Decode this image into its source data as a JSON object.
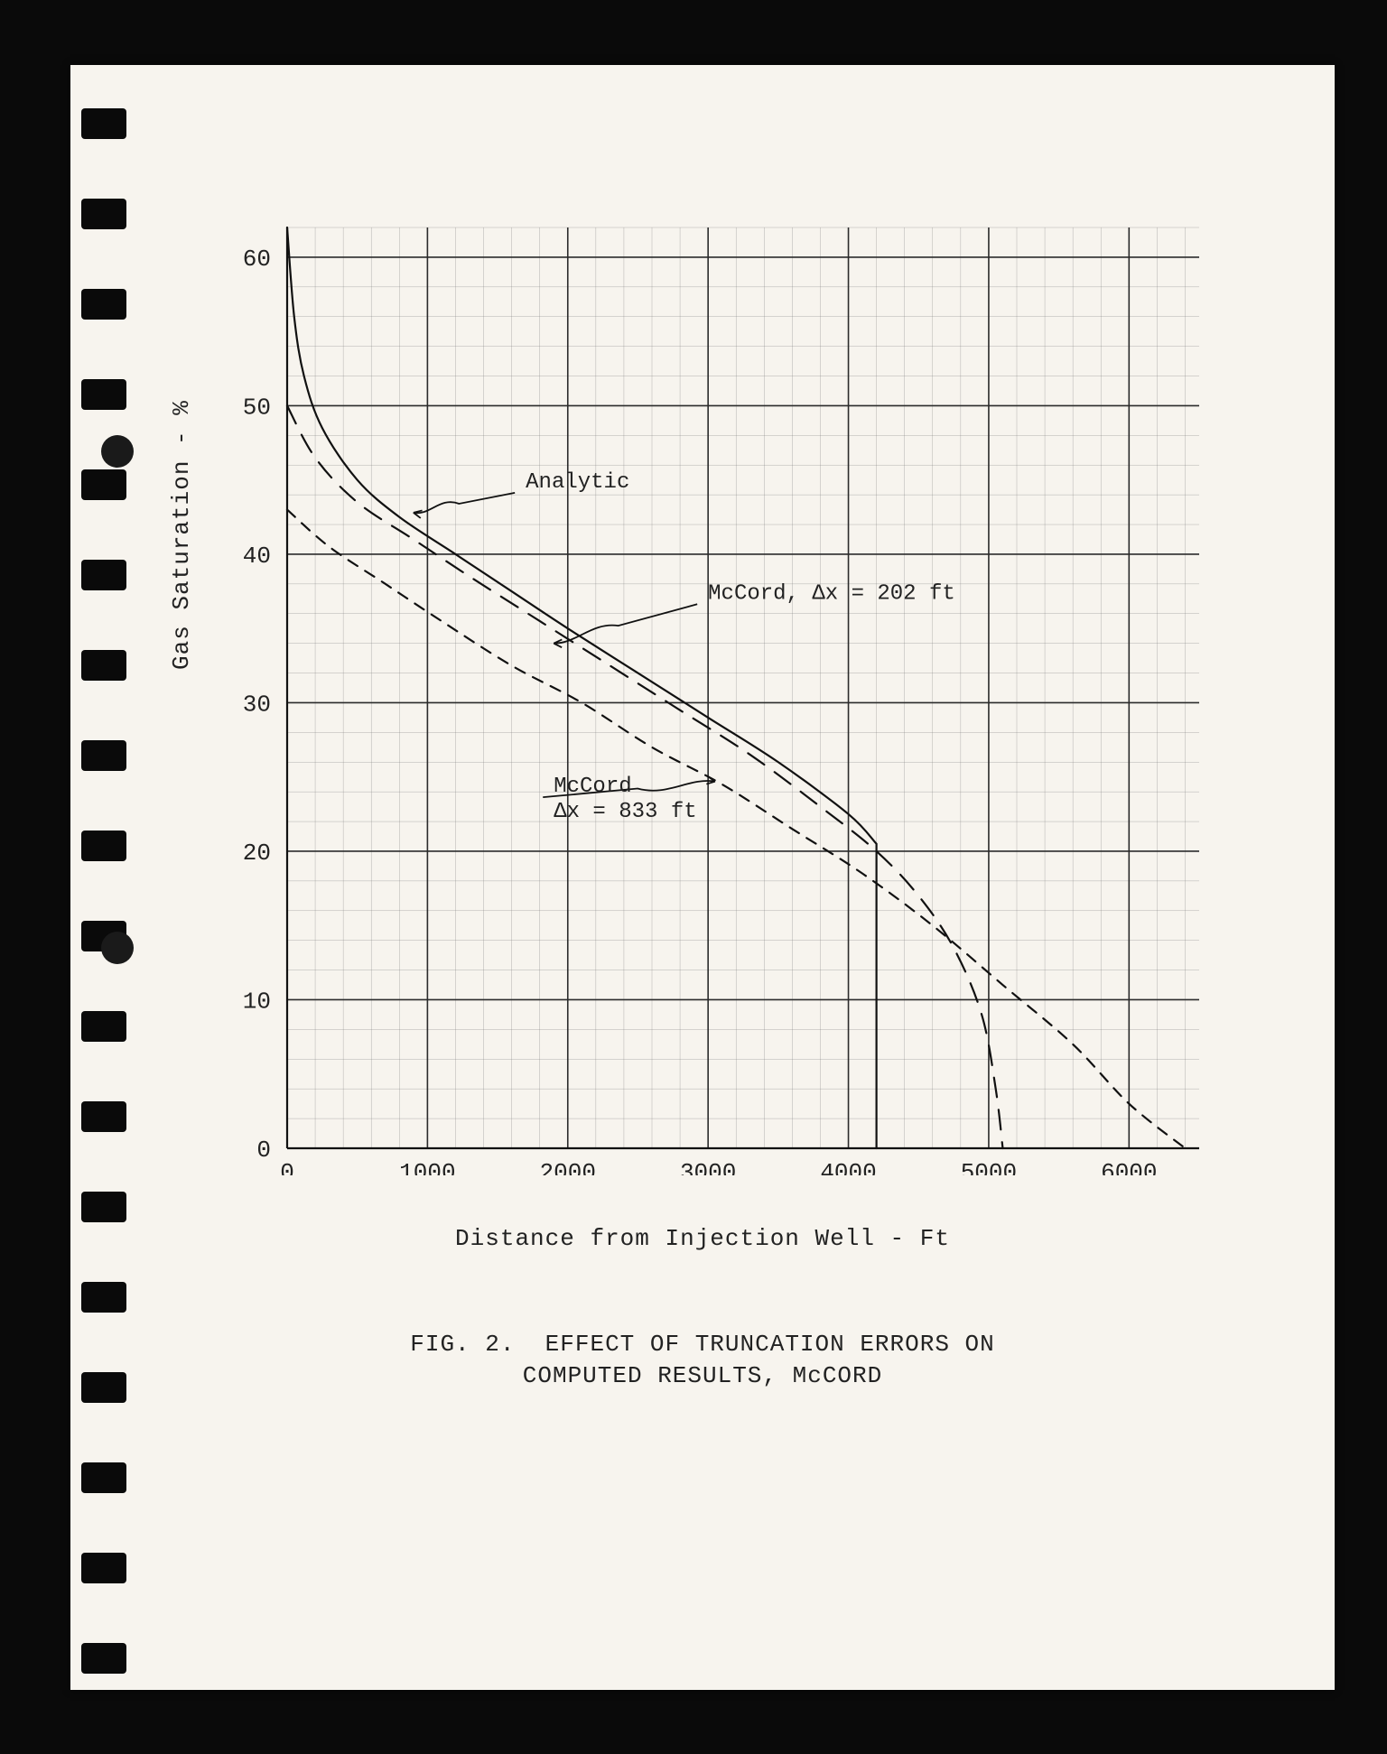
{
  "figure": {
    "caption_line1": "FIG. 2.  EFFECT OF TRUNCATION ERRORS ON",
    "caption_line2": "COMPUTED RESULTS, McCORD",
    "xlabel": "Distance from Injection Well - Ft",
    "ylabel": "Gas Saturation - %",
    "xlim": [
      0,
      6500
    ],
    "ylim": [
      0,
      62
    ],
    "xticks": [
      0,
      1000,
      2000,
      3000,
      4000,
      5000,
      6000
    ],
    "yticks": [
      0,
      10,
      20,
      30,
      40,
      50,
      60
    ],
    "minor_xstep": 200,
    "minor_ystep": 2,
    "major_xstep": 1000,
    "major_ystep": 10,
    "grid_major_color": "#2b2b2b",
    "grid_minor_color": "#7a7a7a",
    "grid_major_width": 1.6,
    "grid_minor_width": 0.5,
    "background": "#f7f4ee",
    "font_family": "Courier New",
    "label_fontsize": 26,
    "tick_fontsize": 26,
    "anno_fontsize": 24,
    "series": {
      "analytic": {
        "label": "Analytic",
        "style": "solid",
        "color": "#111111",
        "width": 2.2,
        "points": [
          [
            0,
            62
          ],
          [
            50,
            56
          ],
          [
            120,
            52
          ],
          [
            250,
            48.5
          ],
          [
            500,
            45
          ],
          [
            800,
            42.5
          ],
          [
            1200,
            40
          ],
          [
            1600,
            37.5
          ],
          [
            2000,
            35
          ],
          [
            2500,
            32
          ],
          [
            3000,
            29
          ],
          [
            3500,
            26
          ],
          [
            4000,
            22.5
          ],
          [
            4200,
            20.5
          ],
          [
            4200,
            0
          ]
        ],
        "anno_xy": [
          1700,
          44.5
        ],
        "arrow_to": [
          900,
          42.8
        ]
      },
      "mccord202": {
        "label": "McCord, Δx = 202 ft",
        "style": "long-dash",
        "dash": "22 14",
        "color": "#111111",
        "width": 2.2,
        "points": [
          [
            0,
            50
          ],
          [
            200,
            46.5
          ],
          [
            500,
            43.5
          ],
          [
            900,
            41
          ],
          [
            1300,
            38.5
          ],
          [
            1800,
            35.5
          ],
          [
            2300,
            32.5
          ],
          [
            2800,
            29.5
          ],
          [
            3300,
            26.5
          ],
          [
            3800,
            23
          ],
          [
            4200,
            20
          ],
          [
            4500,
            17
          ],
          [
            4750,
            13.5
          ],
          [
            4950,
            9
          ],
          [
            5050,
            4
          ],
          [
            5100,
            0
          ]
        ],
        "anno_xy": [
          3000,
          37
        ],
        "arrow_to": [
          1900,
          34
        ]
      },
      "mccord833": {
        "label": "McCord\nΔx = 833 ft",
        "style": "short-dash",
        "dash": "12 10",
        "color": "#111111",
        "width": 2.2,
        "points": [
          [
            0,
            43
          ],
          [
            300,
            40.5
          ],
          [
            700,
            38
          ],
          [
            1100,
            35.5
          ],
          [
            1600,
            32.5
          ],
          [
            2100,
            30
          ],
          [
            2600,
            27
          ],
          [
            3100,
            24.5
          ],
          [
            3600,
            21.5
          ],
          [
            4100,
            18.5
          ],
          [
            4600,
            15
          ],
          [
            5100,
            11
          ],
          [
            5600,
            7
          ],
          [
            6000,
            3
          ],
          [
            6400,
            0
          ]
        ],
        "anno_xy": [
          1900,
          24
        ],
        "arrow_to": [
          3050,
          24.7
        ]
      }
    }
  },
  "page": {
    "hole_count": 18,
    "hole_left": 12,
    "hole_top_start": 48,
    "hole_spacing": 100,
    "punch_holes": [
      [
        34,
        410
      ],
      [
        34,
        960
      ]
    ]
  }
}
